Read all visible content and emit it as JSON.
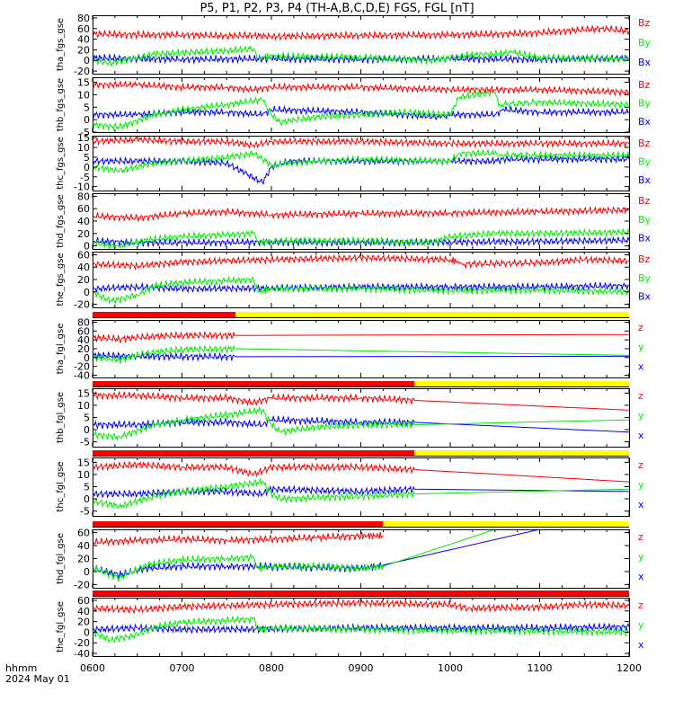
{
  "title": "P5, P1, P2, P3, P4 (TH-A,B,C,D,E) FGS, FGL [nT]",
  "footer": {
    "time_label": "hhmm",
    "date_label": "2024 May 01"
  },
  "colors": {
    "z": "#ff0000",
    "y": "#00ee00",
    "x": "#0000ff",
    "bar_red": "#ff0000",
    "bar_yellow": "#ffff00"
  },
  "chart_data": [
    {
      "type": "line",
      "ylabel": "tha_fgs_gse",
      "ylim": [
        -25,
        85
      ],
      "yticks": [
        -20,
        0,
        20,
        40,
        60,
        80
      ],
      "legend": [
        "Bz",
        "By",
        "Bx"
      ],
      "xticks": [
        "0600",
        "0700",
        "0800",
        "0900",
        "1000",
        "1100",
        "1200"
      ],
      "data_coverage_hours": [
        6,
        12
      ],
      "series": [
        {
          "name": "Bz",
          "x": [
            6.0,
            6.5,
            7.0,
            7.5,
            7.8,
            8.0,
            9.0,
            10.0,
            10.7,
            11.0,
            11.7,
            12.0
          ],
          "y": [
            50,
            48,
            48,
            46,
            47,
            45,
            47,
            48,
            50,
            52,
            60,
            55
          ]
        },
        {
          "name": "By",
          "x": [
            6.0,
            6.2,
            6.5,
            6.7,
            7.0,
            7.5,
            7.8,
            7.85,
            8.0,
            9.0,
            9.8,
            10.2,
            10.5,
            10.7,
            11.0,
            12.0
          ],
          "y": [
            0,
            -5,
            5,
            12,
            15,
            18,
            22,
            5,
            8,
            6,
            0,
            10,
            12,
            15,
            5,
            3
          ]
        },
        {
          "name": "Bx",
          "x": [
            6.0,
            6.5,
            7.0,
            8.0,
            9.0,
            10.0,
            11.0,
            12.0
          ],
          "y": [
            5,
            3,
            2,
            3,
            2,
            3,
            2,
            4
          ]
        }
      ]
    },
    {
      "type": "line",
      "ylabel": "thb_fgs_gse",
      "ylim": [
        -5,
        17
      ],
      "yticks": [
        -5,
        0,
        5,
        10,
        15
      ],
      "legend": [
        "Bz",
        "By",
        "Bx"
      ],
      "xticks": [
        "0600",
        "0700",
        "0800",
        "0900",
        "1000",
        "1100",
        "1200"
      ],
      "data_coverage_hours": [
        6,
        12
      ],
      "series": [
        {
          "name": "Bz",
          "x": [
            6.0,
            6.5,
            7.0,
            7.5,
            7.8,
            8.0,
            9.0,
            10.0,
            10.5,
            11.0,
            12.0
          ],
          "y": [
            14,
            14,
            13,
            13,
            12,
            13,
            13,
            12,
            12,
            12,
            11
          ]
        },
        {
          "name": "By",
          "x": [
            6.0,
            6.3,
            6.7,
            7.0,
            7.5,
            7.9,
            8.0,
            8.1,
            8.5,
            9.0,
            9.5,
            10.0,
            10.1,
            10.5,
            10.55,
            11.0,
            12.0
          ],
          "y": [
            -2,
            -3,
            2,
            4,
            6,
            8,
            2,
            -1,
            1,
            2,
            3,
            2,
            9,
            11,
            6,
            7,
            6
          ]
        },
        {
          "name": "Bx",
          "x": [
            6.0,
            6.5,
            7.0,
            7.5,
            7.9,
            8.0,
            9.0,
            9.9,
            10.0,
            10.5,
            10.6,
            11.0,
            12.0
          ],
          "y": [
            2,
            2,
            3,
            3,
            2,
            4,
            3,
            1,
            2,
            2,
            4,
            3,
            3
          ]
        }
      ]
    },
    {
      "type": "line",
      "ylabel": "thc_fgs_gse",
      "ylim": [
        -12,
        16
      ],
      "yticks": [
        -10,
        -5,
        0,
        5,
        10,
        15
      ],
      "legend": [
        "Bz",
        "By",
        "Bx"
      ],
      "xticks": [
        "0600",
        "0700",
        "0800",
        "0900",
        "1000",
        "1100",
        "1200"
      ],
      "data_coverage_hours": [
        6,
        12
      ],
      "series": [
        {
          "name": "Bz",
          "x": [
            6.0,
            6.5,
            7.0,
            7.5,
            7.8,
            8.0,
            9.0,
            10.0,
            11.0,
            12.0
          ],
          "y": [
            13,
            14,
            13,
            13,
            11,
            13,
            13,
            12,
            12,
            12
          ]
        },
        {
          "name": "By",
          "x": [
            6.0,
            6.3,
            6.7,
            7.0,
            7.5,
            7.8,
            8.0,
            8.5,
            9.0,
            10.0,
            10.1,
            10.5,
            10.55,
            11.0,
            12.0
          ],
          "y": [
            0,
            -2,
            2,
            3,
            5,
            7,
            1,
            3,
            4,
            3,
            7,
            7,
            6,
            6,
            6
          ]
        },
        {
          "name": "Bx",
          "x": [
            6.0,
            6.5,
            7.0,
            7.5,
            7.7,
            7.9,
            8.0,
            8.2,
            9.0,
            10.0,
            10.5,
            10.6,
            11.0,
            12.0
          ],
          "y": [
            3,
            3,
            3,
            2,
            -3,
            -8,
            0,
            3,
            3,
            3,
            3,
            4,
            4,
            4
          ]
        }
      ]
    },
    {
      "type": "line",
      "ylabel": "thd_fgs_gse",
      "ylim": [
        -5,
        85
      ],
      "yticks": [
        0,
        20,
        40,
        60,
        80
      ],
      "legend": [
        "Bz",
        "By",
        "Bx"
      ],
      "xticks": [
        "0600",
        "0700",
        "0800",
        "0900",
        "1000",
        "1100",
        "1200"
      ],
      "data_coverage_hours": [
        6,
        12
      ],
      "series": [
        {
          "name": "Bz",
          "x": [
            6.0,
            6.5,
            7.0,
            7.5,
            8.0,
            9.0,
            10.0,
            11.0,
            12.0
          ],
          "y": [
            48,
            45,
            52,
            55,
            50,
            52,
            53,
            55,
            58
          ]
        },
        {
          "name": "By",
          "x": [
            6.0,
            6.3,
            6.6,
            7.0,
            7.5,
            7.8,
            7.85,
            8.0,
            9.0,
            9.8,
            10.0,
            10.5,
            11.0,
            12.0
          ],
          "y": [
            5,
            -2,
            10,
            15,
            18,
            20,
            5,
            8,
            8,
            5,
            15,
            20,
            20,
            22
          ]
        },
        {
          "name": "Bx",
          "x": [
            6.0,
            6.5,
            7.0,
            8.0,
            9.0,
            10.0,
            11.0,
            12.0
          ],
          "y": [
            8,
            5,
            5,
            6,
            5,
            6,
            7,
            9
          ]
        }
      ]
    },
    {
      "type": "line",
      "ylabel": "the_fgs_gse",
      "ylim": [
        -25,
        65
      ],
      "yticks": [
        -20,
        0,
        20,
        40,
        60
      ],
      "legend": [
        "Bz",
        "By",
        "Bx"
      ],
      "xticks": [
        "0600",
        "0700",
        "0800",
        "0900",
        "1000",
        "1100",
        "1200"
      ],
      "data_coverage_hours": [
        6,
        12
      ],
      "series": [
        {
          "name": "Bz",
          "x": [
            6.0,
            6.5,
            7.0,
            7.5,
            8.0,
            9.0,
            10.0,
            10.15,
            11.0,
            11.5,
            12.0
          ],
          "y": [
            45,
            42,
            48,
            50,
            52,
            55,
            52,
            45,
            47,
            52,
            50
          ]
        },
        {
          "name": "By",
          "x": [
            6.0,
            6.2,
            6.5,
            6.7,
            7.0,
            7.5,
            7.8,
            7.85,
            8.0,
            9.0,
            10.0,
            11.0,
            12.0
          ],
          "y": [
            0,
            -15,
            -5,
            10,
            15,
            18,
            20,
            0,
            5,
            5,
            2,
            3,
            0
          ]
        },
        {
          "name": "Bx",
          "x": [
            6.0,
            6.5,
            7.0,
            8.0,
            9.0,
            10.0,
            11.0,
            12.0
          ],
          "y": [
            5,
            8,
            5,
            6,
            8,
            8,
            8,
            10
          ]
        }
      ]
    },
    {
      "type": "line",
      "ylabel": "tha_fgl_gse",
      "ylim": [
        -45,
        85
      ],
      "yticks": [
        -40,
        -20,
        0,
        20,
        40,
        60,
        80
      ],
      "legend": [
        "z",
        "y",
        "x"
      ],
      "xticks": [
        "0600",
        "0700",
        "0800",
        "0900",
        "1000",
        "1100",
        "1200"
      ],
      "data_coverage_hours": [
        6,
        7.6
      ],
      "bar_red_until_hour": 7.6,
      "series": [
        {
          "name": "z",
          "x": [
            6.0,
            6.3,
            6.7,
            7.0,
            7.6,
            12.0
          ],
          "y": [
            45,
            42,
            48,
            50,
            50,
            52
          ]
        },
        {
          "name": "y",
          "x": [
            6.0,
            6.3,
            6.6,
            7.0,
            7.6,
            12.0
          ],
          "y": [
            0,
            -5,
            10,
            18,
            20,
            5
          ]
        },
        {
          "name": "x",
          "x": [
            6.0,
            6.5,
            7.0,
            7.6,
            12.0
          ],
          "y": [
            5,
            3,
            2,
            2,
            3
          ]
        }
      ]
    },
    {
      "type": "line",
      "ylabel": "thb_fgl_gse",
      "ylim": [
        -7,
        17
      ],
      "yticks": [
        -5,
        0,
        5,
        10,
        15
      ],
      "legend": [
        "z",
        "y",
        "x"
      ],
      "xticks": [
        "0600",
        "0700",
        "0800",
        "0900",
        "1000",
        "1100",
        "1200"
      ],
      "data_coverage_hours": [
        6,
        9.6
      ],
      "bar_red_until_hour": 9.6,
      "series": [
        {
          "name": "z",
          "x": [
            6.0,
            6.5,
            7.0,
            7.5,
            7.8,
            8.0,
            9.0,
            9.6,
            12.0
          ],
          "y": [
            14,
            14,
            13,
            13,
            11,
            13,
            13,
            12,
            8
          ]
        },
        {
          "name": "y",
          "x": [
            6.0,
            6.3,
            6.7,
            7.0,
            7.5,
            7.9,
            8.0,
            8.1,
            8.5,
            9.0,
            9.6,
            12.0
          ],
          "y": [
            -2,
            -3,
            2,
            4,
            6,
            8,
            2,
            -1,
            1,
            2,
            2,
            4
          ]
        },
        {
          "name": "x",
          "x": [
            6.0,
            6.5,
            7.0,
            7.5,
            7.9,
            8.0,
            9.0,
            9.6,
            12.0
          ],
          "y": [
            2,
            2,
            3,
            3,
            2,
            4,
            3,
            3,
            -1
          ]
        }
      ]
    },
    {
      "type": "line",
      "ylabel": "thc_fgl_gse",
      "ylim": [
        -7,
        17
      ],
      "yticks": [
        -5,
        0,
        5,
        10,
        15
      ],
      "legend": [
        "z",
        "y",
        "x"
      ],
      "xticks": [
        "0600",
        "0700",
        "0800",
        "0900",
        "1000",
        "1100",
        "1200"
      ],
      "data_coverage_hours": [
        6,
        9.6
      ],
      "bar_red_until_hour": 9.6,
      "series": [
        {
          "name": "z",
          "x": [
            6.0,
            6.5,
            7.0,
            7.5,
            7.8,
            8.0,
            9.0,
            9.6,
            12.0
          ],
          "y": [
            13,
            14,
            13,
            13,
            10,
            13,
            13,
            12,
            7
          ]
        },
        {
          "name": "y",
          "x": [
            6.0,
            6.3,
            6.7,
            7.0,
            7.5,
            7.9,
            8.0,
            8.1,
            9.0,
            9.6,
            12.0
          ],
          "y": [
            -1,
            -3,
            1,
            3,
            5,
            7,
            2,
            0,
            1,
            2,
            4
          ]
        },
        {
          "name": "x",
          "x": [
            6.0,
            6.5,
            7.0,
            7.5,
            7.9,
            8.0,
            9.0,
            9.6,
            12.0
          ],
          "y": [
            2,
            2,
            3,
            3,
            2,
            4,
            3,
            4,
            3
          ]
        }
      ]
    },
    {
      "type": "line",
      "ylabel": "thd_fgl_gse",
      "ylim": [
        -25,
        65
      ],
      "yticks": [
        -20,
        0,
        20,
        40,
        60
      ],
      "legend": [
        "z",
        "y",
        "x"
      ],
      "xticks": [
        "0600",
        "0700",
        "0800",
        "0900",
        "1000",
        "1100",
        "1200"
      ],
      "data_coverage_hours": [
        6,
        9.25
      ],
      "bar_red_until_hour": 9.25,
      "series": [
        {
          "name": "z",
          "x": [
            6.0,
            6.5,
            7.0,
            7.5,
            8.0,
            8.5,
            9.0,
            9.25
          ],
          "y": [
            45,
            48,
            50,
            48,
            50,
            52,
            55,
            55
          ]
        },
        {
          "name": "y",
          "x": [
            6.0,
            6.3,
            6.6,
            7.0,
            7.5,
            7.8,
            7.85,
            8.0,
            8.5,
            9.0,
            9.25,
            10.5
          ],
          "y": [
            5,
            -10,
            10,
            18,
            20,
            22,
            5,
            8,
            8,
            5,
            8,
            65
          ]
        },
        {
          "name": "x",
          "x": [
            6.0,
            6.3,
            6.6,
            7.0,
            7.5,
            8.0,
            8.5,
            9.0,
            9.25,
            11.0
          ],
          "y": [
            5,
            -5,
            5,
            8,
            8,
            8,
            6,
            5,
            10,
            65
          ]
        }
      ]
    },
    {
      "type": "line",
      "ylabel": "the_fgl_gse",
      "ylim": [
        -45,
        65
      ],
      "yticks": [
        -40,
        -20,
        0,
        20,
        40,
        60
      ],
      "legend": [
        "z",
        "y",
        "x"
      ],
      "xticks": [
        "0600",
        "0700",
        "0800",
        "0900",
        "1000",
        "1100",
        "1200"
      ],
      "data_coverage_hours": [
        6,
        12
      ],
      "bar_red_until_hour": 12,
      "series": [
        {
          "name": "z",
          "x": [
            6.0,
            6.5,
            7.0,
            7.5,
            8.0,
            9.0,
            10.0,
            10.2,
            11.0,
            11.5,
            12.0
          ],
          "y": [
            45,
            42,
            48,
            50,
            52,
            55,
            52,
            45,
            47,
            52,
            50
          ]
        },
        {
          "name": "y",
          "x": [
            6.0,
            6.2,
            6.5,
            6.7,
            7.0,
            7.5,
            7.8,
            7.85,
            8.0,
            9.0,
            10.0,
            11.0,
            12.0
          ],
          "y": [
            0,
            -15,
            -5,
            10,
            18,
            22,
            25,
            5,
            8,
            5,
            3,
            2,
            0
          ]
        },
        {
          "name": "x",
          "x": [
            6.0,
            6.5,
            7.0,
            8.0,
            9.0,
            10.0,
            11.0,
            12.0
          ],
          "y": [
            5,
            8,
            5,
            6,
            8,
            8,
            8,
            10
          ]
        }
      ]
    }
  ]
}
